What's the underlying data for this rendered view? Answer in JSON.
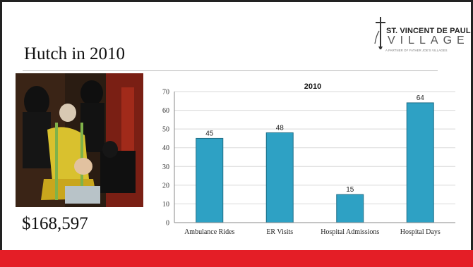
{
  "slide": {
    "title": "Hutch in 2010",
    "amount": "$168,597"
  },
  "logo": {
    "name": "ST. VINCENT DE PAUL",
    "village": "VILLAGE",
    "tagline": "A PARTNER OF FATHER JOE'S VILLAGES"
  },
  "photo": {
    "description_icon": "photo-icon"
  },
  "colors": {
    "bar": "#2ea1c4",
    "bar_edge": "#1f6f87",
    "footer": "#e41e26",
    "grid": "#d9d9d9",
    "axis": "#888888"
  },
  "chart_data": {
    "type": "bar",
    "title": "2010",
    "categories": [
      "Ambulance Rides",
      "ER Visits",
      "Hospital Admissions",
      "Hospital Days"
    ],
    "values": [
      45,
      48,
      15,
      64
    ],
    "ylim": [
      0,
      70
    ],
    "yticks": [
      0,
      10,
      20,
      30,
      40,
      50,
      60,
      70
    ],
    "grid": true,
    "legend": "none",
    "data_labels": true
  }
}
